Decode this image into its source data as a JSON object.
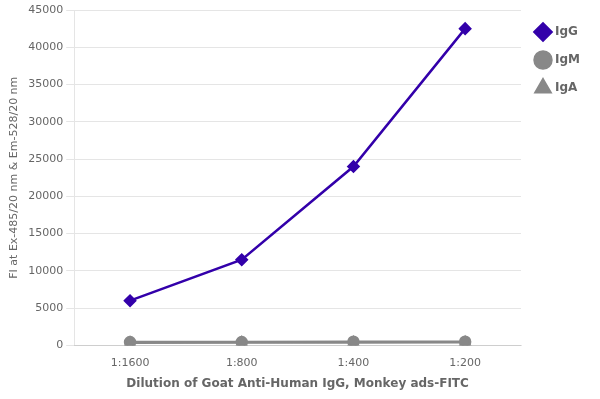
{
  "chart_data": {
    "type": "line",
    "xlabel": "Dilution of Goat Anti-Human IgG, Monkey ads-FITC",
    "ylabel": "FI at Ex-485/20 nm & Em-528/20 nm",
    "categories": [
      "1:1600",
      "1:800",
      "1:400",
      "1:200"
    ],
    "series": [
      {
        "name": "IgG",
        "color": "#3300aa",
        "marker": "diamond",
        "values": [
          6000,
          11500,
          24000,
          42500
        ]
      },
      {
        "name": "IgM",
        "color": "#888888",
        "marker": "circle",
        "values": [
          450,
          450,
          500,
          500
        ]
      },
      {
        "name": "IgA",
        "color": "#888888",
        "marker": "triangle",
        "values": [
          350,
          380,
          400,
          420
        ]
      }
    ],
    "ylim": [
      0,
      45000
    ],
    "yticks": [
      0,
      5000,
      10000,
      15000,
      20000,
      25000,
      30000,
      35000,
      40000,
      45000
    ],
    "grid": true,
    "legend": "right"
  }
}
